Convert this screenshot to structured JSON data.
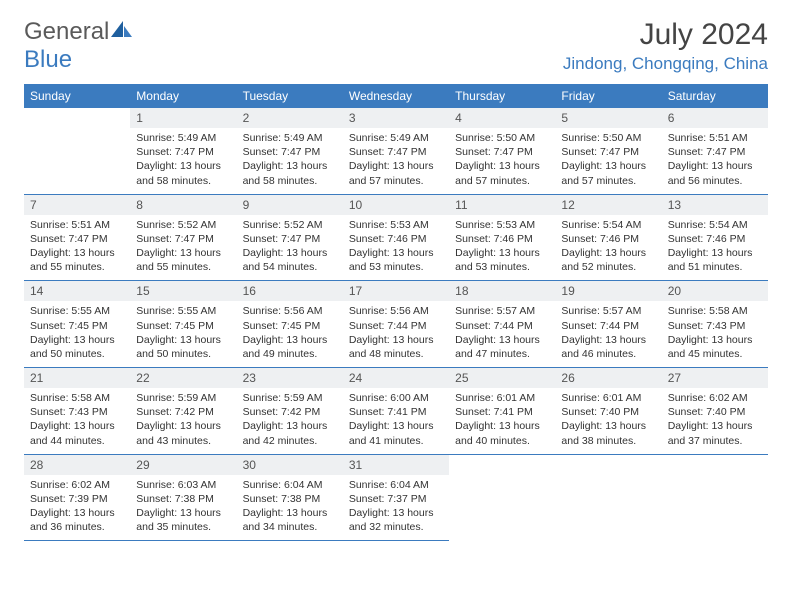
{
  "brand": {
    "name_a": "General",
    "name_b": "Blue"
  },
  "title": {
    "month_year": "July 2024",
    "location": "Jindong, Chongqing, China"
  },
  "colors": {
    "header_bg": "#3b7bbf",
    "header_text": "#ffffff",
    "daynum_bg": "#eef0f2",
    "cell_border": "#3b7bbf",
    "logo_gray": "#5a5a5a",
    "logo_blue": "#3b7bbf",
    "body_text": "#333333"
  },
  "layout": {
    "cols": 7,
    "rows": 5,
    "start_col": 1
  },
  "weekdays": [
    "Sunday",
    "Monday",
    "Tuesday",
    "Wednesday",
    "Thursday",
    "Friday",
    "Saturday"
  ],
  "days": [
    {
      "n": 1,
      "sunrise": "5:49 AM",
      "sunset": "7:47 PM",
      "daylight": "13 hours and 58 minutes."
    },
    {
      "n": 2,
      "sunrise": "5:49 AM",
      "sunset": "7:47 PM",
      "daylight": "13 hours and 58 minutes."
    },
    {
      "n": 3,
      "sunrise": "5:49 AM",
      "sunset": "7:47 PM",
      "daylight": "13 hours and 57 minutes."
    },
    {
      "n": 4,
      "sunrise": "5:50 AM",
      "sunset": "7:47 PM",
      "daylight": "13 hours and 57 minutes."
    },
    {
      "n": 5,
      "sunrise": "5:50 AM",
      "sunset": "7:47 PM",
      "daylight": "13 hours and 57 minutes."
    },
    {
      "n": 6,
      "sunrise": "5:51 AM",
      "sunset": "7:47 PM",
      "daylight": "13 hours and 56 minutes."
    },
    {
      "n": 7,
      "sunrise": "5:51 AM",
      "sunset": "7:47 PM",
      "daylight": "13 hours and 55 minutes."
    },
    {
      "n": 8,
      "sunrise": "5:52 AM",
      "sunset": "7:47 PM",
      "daylight": "13 hours and 55 minutes."
    },
    {
      "n": 9,
      "sunrise": "5:52 AM",
      "sunset": "7:47 PM",
      "daylight": "13 hours and 54 minutes."
    },
    {
      "n": 10,
      "sunrise": "5:53 AM",
      "sunset": "7:46 PM",
      "daylight": "13 hours and 53 minutes."
    },
    {
      "n": 11,
      "sunrise": "5:53 AM",
      "sunset": "7:46 PM",
      "daylight": "13 hours and 53 minutes."
    },
    {
      "n": 12,
      "sunrise": "5:54 AM",
      "sunset": "7:46 PM",
      "daylight": "13 hours and 52 minutes."
    },
    {
      "n": 13,
      "sunrise": "5:54 AM",
      "sunset": "7:46 PM",
      "daylight": "13 hours and 51 minutes."
    },
    {
      "n": 14,
      "sunrise": "5:55 AM",
      "sunset": "7:45 PM",
      "daylight": "13 hours and 50 minutes."
    },
    {
      "n": 15,
      "sunrise": "5:55 AM",
      "sunset": "7:45 PM",
      "daylight": "13 hours and 50 minutes."
    },
    {
      "n": 16,
      "sunrise": "5:56 AM",
      "sunset": "7:45 PM",
      "daylight": "13 hours and 49 minutes."
    },
    {
      "n": 17,
      "sunrise": "5:56 AM",
      "sunset": "7:44 PM",
      "daylight": "13 hours and 48 minutes."
    },
    {
      "n": 18,
      "sunrise": "5:57 AM",
      "sunset": "7:44 PM",
      "daylight": "13 hours and 47 minutes."
    },
    {
      "n": 19,
      "sunrise": "5:57 AM",
      "sunset": "7:44 PM",
      "daylight": "13 hours and 46 minutes."
    },
    {
      "n": 20,
      "sunrise": "5:58 AM",
      "sunset": "7:43 PM",
      "daylight": "13 hours and 45 minutes."
    },
    {
      "n": 21,
      "sunrise": "5:58 AM",
      "sunset": "7:43 PM",
      "daylight": "13 hours and 44 minutes."
    },
    {
      "n": 22,
      "sunrise": "5:59 AM",
      "sunset": "7:42 PM",
      "daylight": "13 hours and 43 minutes."
    },
    {
      "n": 23,
      "sunrise": "5:59 AM",
      "sunset": "7:42 PM",
      "daylight": "13 hours and 42 minutes."
    },
    {
      "n": 24,
      "sunrise": "6:00 AM",
      "sunset": "7:41 PM",
      "daylight": "13 hours and 41 minutes."
    },
    {
      "n": 25,
      "sunrise": "6:01 AM",
      "sunset": "7:41 PM",
      "daylight": "13 hours and 40 minutes."
    },
    {
      "n": 26,
      "sunrise": "6:01 AM",
      "sunset": "7:40 PM",
      "daylight": "13 hours and 38 minutes."
    },
    {
      "n": 27,
      "sunrise": "6:02 AM",
      "sunset": "7:40 PM",
      "daylight": "13 hours and 37 minutes."
    },
    {
      "n": 28,
      "sunrise": "6:02 AM",
      "sunset": "7:39 PM",
      "daylight": "13 hours and 36 minutes."
    },
    {
      "n": 29,
      "sunrise": "6:03 AM",
      "sunset": "7:38 PM",
      "daylight": "13 hours and 35 minutes."
    },
    {
      "n": 30,
      "sunrise": "6:04 AM",
      "sunset": "7:38 PM",
      "daylight": "13 hours and 34 minutes."
    },
    {
      "n": 31,
      "sunrise": "6:04 AM",
      "sunset": "7:37 PM",
      "daylight": "13 hours and 32 minutes."
    }
  ],
  "labels": {
    "sunrise": "Sunrise:",
    "sunset": "Sunset:",
    "daylight": "Daylight:"
  }
}
